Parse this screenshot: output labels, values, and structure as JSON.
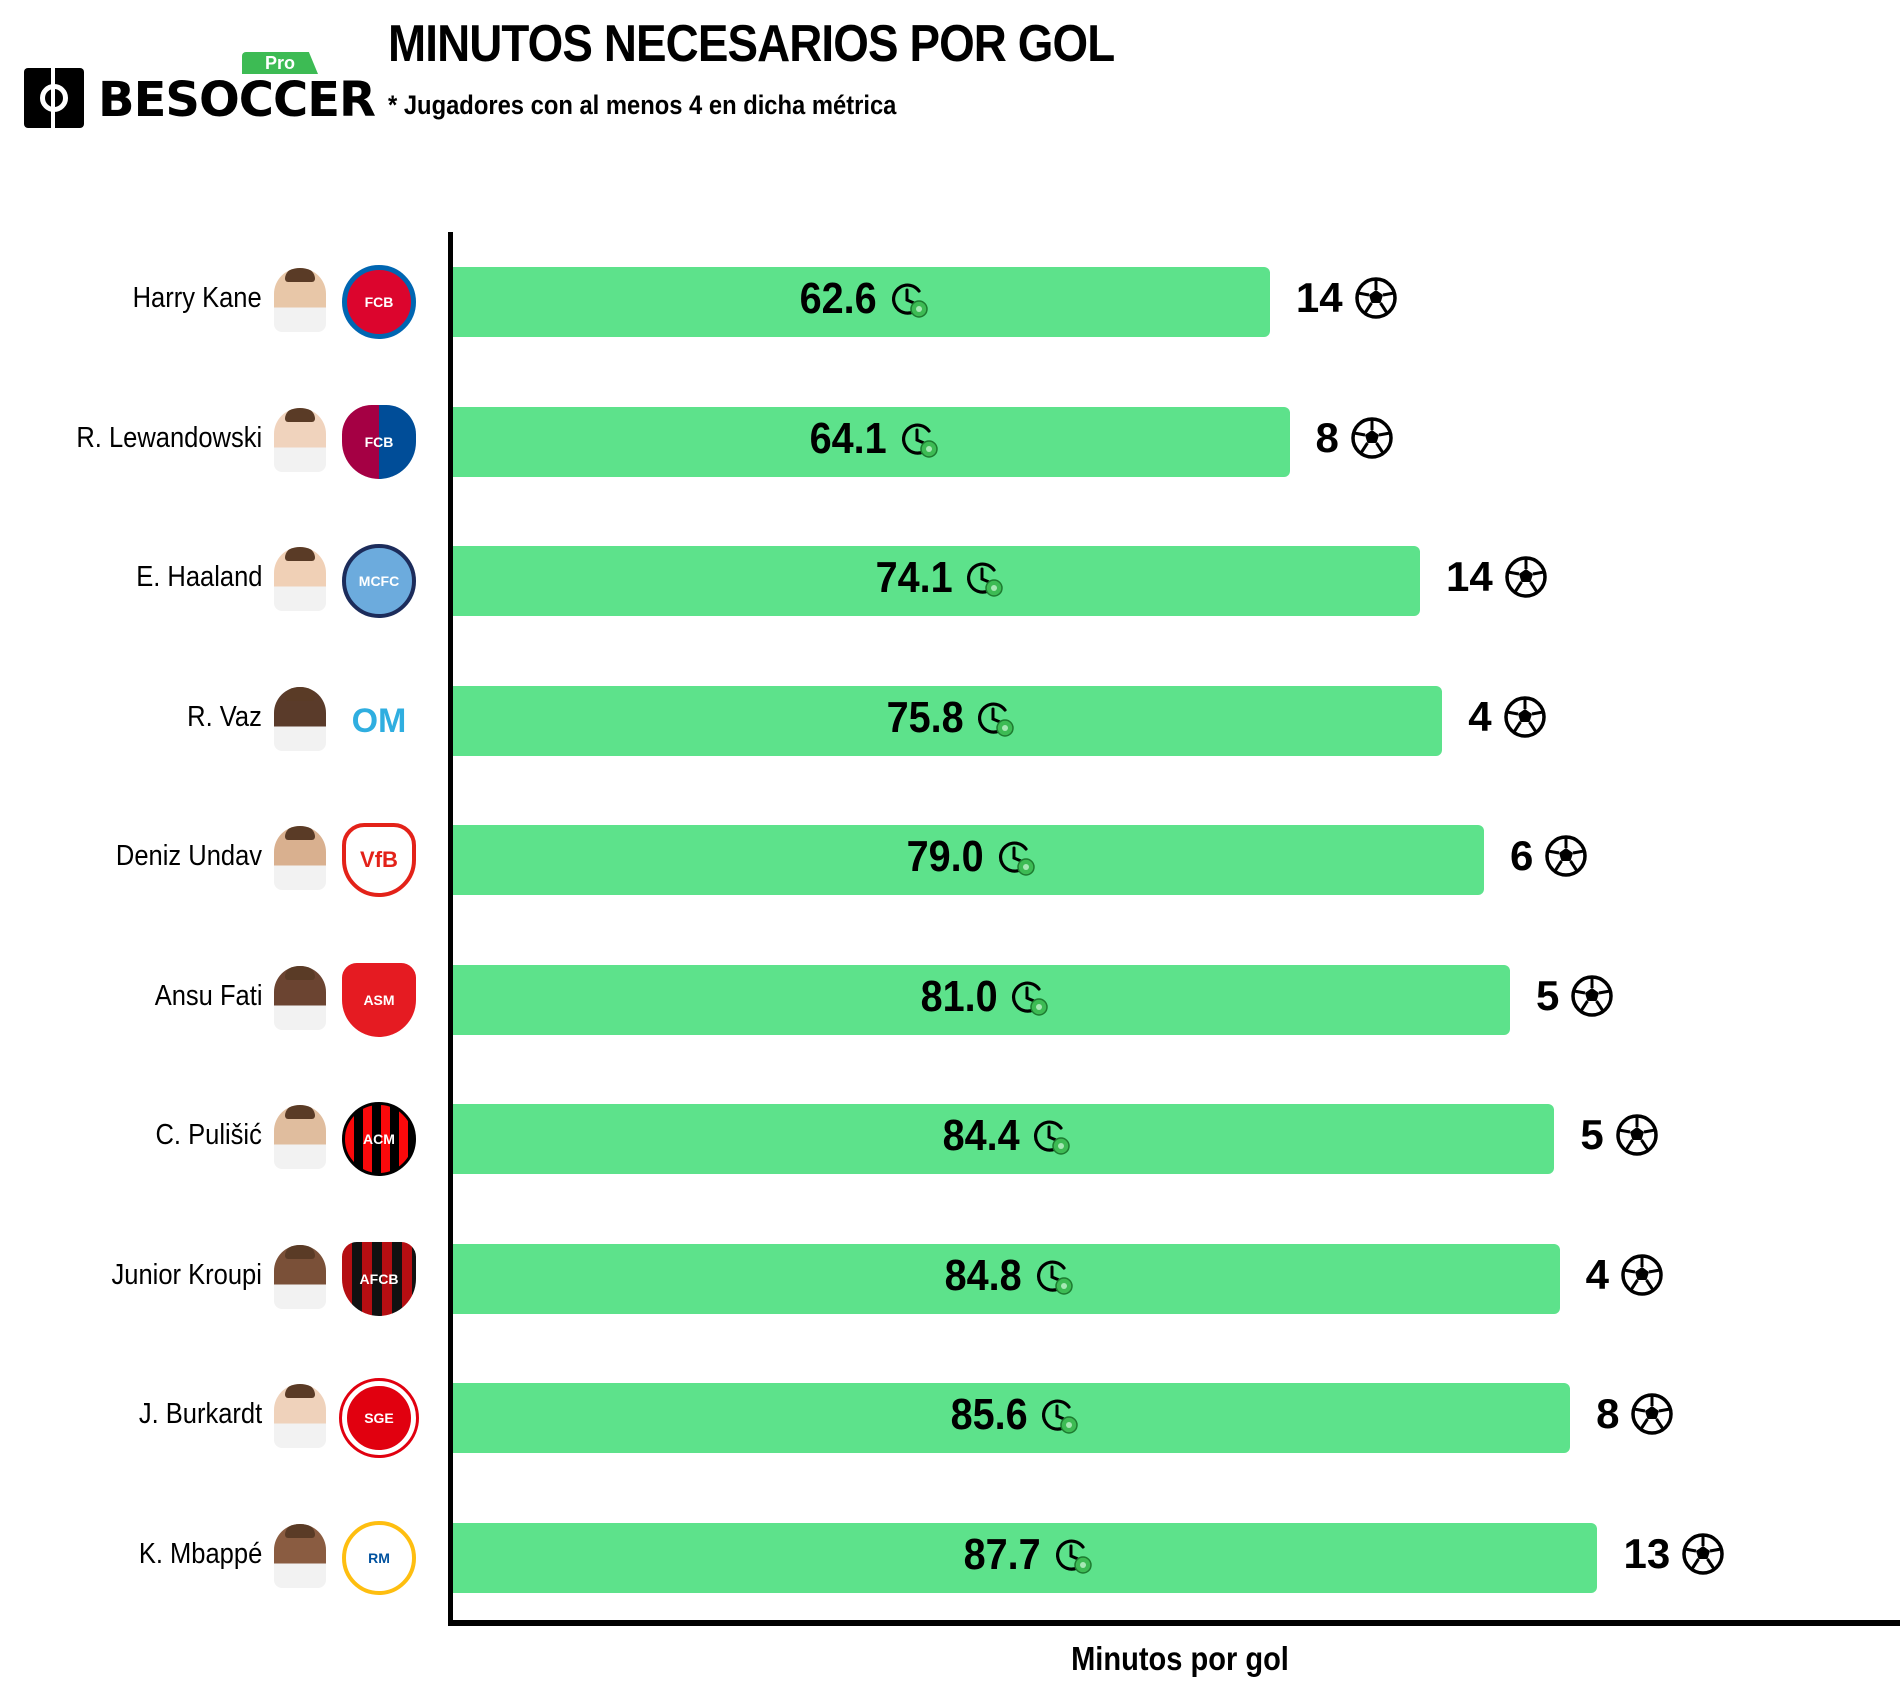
{
  "header": {
    "brand": "BESOCCER",
    "brand_badge": "Pro",
    "title": "MINUTOS NECESARIOS POR GOL",
    "subtitle": "* Jugadores con al menos 4 en dicha métrica"
  },
  "colors": {
    "bar": "#5de28b",
    "badge": "#3dbb54",
    "axis": "#000000"
  },
  "chart_data": {
    "type": "bar",
    "orientation": "horizontal",
    "title": "MINUTOS NECESARIOS POR GOL",
    "subtitle": "* Jugadores con al menos 4 en dicha métrica",
    "xlabel": "Minutos por gol",
    "ylabel": "",
    "xlim": [
      0,
      119
    ],
    "categories": [
      "Harry Kane",
      "R. Lewandowski",
      "E. Haaland",
      "R. Vaz",
      "Deniz Undav",
      "Ansu Fati",
      "C. Pulišić",
      "Junior Kroupi",
      "J. Burkardt",
      "K. Mbappé"
    ],
    "series": [
      {
        "name": "Minutos por gol",
        "values": [
          62.6,
          64.1,
          74.1,
          75.8,
          79.0,
          81.0,
          84.4,
          84.8,
          85.6,
          87.7
        ]
      },
      {
        "name": "Goles",
        "values": [
          14,
          8,
          14,
          4,
          6,
          5,
          5,
          4,
          8,
          13
        ]
      }
    ],
    "value_labels": [
      "62.6",
      "64.1",
      "74.1",
      "75.8",
      "79.0",
      "81.0",
      "84.4",
      "84.8",
      "85.6",
      "87.7"
    ],
    "goal_labels": [
      "14",
      "8",
      "14",
      "4",
      "6",
      "5",
      "5",
      "4",
      "8",
      "13"
    ],
    "clubs": [
      "FC Bayern München",
      "FCB",
      "Manchester City",
      "OM",
      "VfB",
      "AS Monaco",
      "ACM",
      "AFC Bournemouth",
      "Eintracht Frankfurt",
      "Real Madrid"
    ],
    "icons": {
      "value": "clock-icon",
      "goals": "football-icon"
    },
    "grid": false
  }
}
